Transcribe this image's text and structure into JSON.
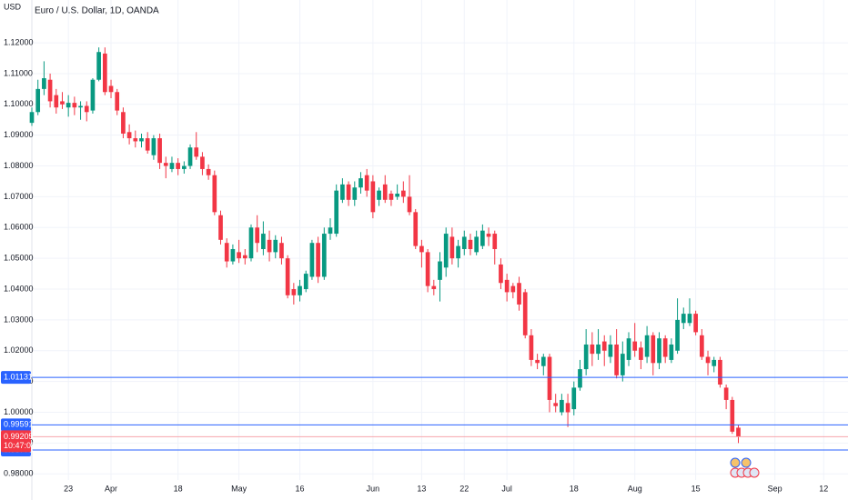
{
  "chart_data": {
    "type": "candlestick",
    "currency": "USD",
    "title": "Euro / U.S. Dollar, 1D, OANDA",
    "up_color": "#089981",
    "down_color": "#f23645",
    "grid": true,
    "xlim": [
      0,
      134
    ],
    "xticks": [
      {
        "value": 6,
        "label": "23"
      },
      {
        "value": 13,
        "label": "Apr"
      },
      {
        "value": 24,
        "label": "18"
      },
      {
        "value": 34,
        "label": "May"
      },
      {
        "value": 44,
        "label": "16"
      },
      {
        "value": 56,
        "label": "Jun"
      },
      {
        "value": 64,
        "label": "13"
      },
      {
        "value": 71,
        "label": "22"
      },
      {
        "value": 78,
        "label": "Jul"
      },
      {
        "value": 89,
        "label": "18"
      },
      {
        "value": 99,
        "label": "Aug"
      },
      {
        "value": 109,
        "label": "15"
      },
      {
        "value": 122,
        "label": "Sep"
      },
      {
        "value": 130,
        "label": "12"
      }
    ],
    "ylim": [
      0.978,
      1.1339
    ],
    "yticks": [
      {
        "value": 0.98,
        "label": "0.98000"
      },
      {
        "value": 0.99,
        "label": "0.99000"
      },
      {
        "value": 1.0,
        "label": "1.00000"
      },
      {
        "value": 1.01,
        "label": "1.01000"
      },
      {
        "value": 1.02,
        "label": "1.02000"
      },
      {
        "value": 1.03,
        "label": "1.03000"
      },
      {
        "value": 1.04,
        "label": "1.04000"
      },
      {
        "value": 1.05,
        "label": "1.05000"
      },
      {
        "value": 1.06,
        "label": "1.06000"
      },
      {
        "value": 1.07,
        "label": "1.07000"
      },
      {
        "value": 1.08,
        "label": "1.08000"
      },
      {
        "value": 1.09,
        "label": "1.09000"
      },
      {
        "value": 1.1,
        "label": "1.10000"
      },
      {
        "value": 1.11,
        "label": "1.11000"
      },
      {
        "value": 1.12,
        "label": "1.12000"
      }
    ],
    "open": [
      1.094,
      1.0975,
      1.105,
      1.108,
      1.103,
      1.101,
      1.099,
      1.1005,
      1.099,
      1.0995,
      1.098,
      1.108,
      1.1165,
      1.106,
      1.104,
      1.0975,
      1.091,
      1.089,
      1.088,
      1.089,
      1.0835,
      1.089,
      1.081,
      1.079,
      1.081,
      1.079,
      1.08,
      1.086,
      1.083,
      1.079,
      1.077,
      1.064,
      1.055,
      1.049,
      1.052,
      1.051,
      1.05,
      1.06,
      1.053,
      1.056,
      1.052,
      1.055,
      1.05,
      1.04,
      1.038,
      1.04,
      1.044,
      1.055,
      1.044,
      1.058,
      1.058,
      1.069,
      1.074,
      1.069,
      1.073,
      1.077,
      1.075,
      1.069,
      1.074,
      1.071,
      1.07,
      1.072,
      1.07,
      1.065,
      1.054,
      1.052,
      1.041,
      1.043,
      1.047,
      1.057,
      1.05,
      1.053,
      1.056,
      1.052,
      1.054,
      1.058,
      1.058,
      1.048,
      1.043,
      1.041,
      1.042,
      1.039,
      1.025,
      1.017,
      1.015,
      1.018,
      1.003,
      1.0,
      1.003,
      1.001,
      1.008,
      1.014,
      1.022,
      1.019,
      1.023,
      1.018,
      1.022,
      1.012,
      1.017,
      1.023,
      1.021,
      1.018,
      1.025,
      1.016,
      1.024,
      1.017,
      1.02,
      1.029,
      1.029,
      1.032,
      1.025,
      1.018,
      1.015,
      1.017,
      1.008,
      1.004,
      0.995
    ],
    "high": [
      1.099,
      1.108,
      1.114,
      1.11,
      1.105,
      1.104,
      1.103,
      1.1025,
      1.101,
      1.101,
      1.1085,
      1.1185,
      1.1185,
      1.108,
      1.105,
      1.099,
      1.0935,
      1.0915,
      1.0905,
      1.091,
      1.09,
      1.0905,
      1.083,
      1.083,
      1.0825,
      1.0815,
      1.087,
      1.091,
      1.0845,
      1.0805,
      1.0785,
      1.0655,
      1.0565,
      1.0545,
      1.056,
      1.053,
      1.061,
      1.064,
      1.062,
      1.059,
      1.0575,
      1.057,
      1.051,
      1.042,
      1.043,
      1.046,
      1.056,
      1.057,
      1.06,
      1.063,
      1.074,
      1.076,
      1.075,
      1.075,
      1.078,
      1.079,
      1.077,
      1.073,
      1.077,
      1.072,
      1.074,
      1.075,
      1.077,
      1.066,
      1.056,
      1.053,
      1.043,
      1.052,
      1.06,
      1.06,
      1.056,
      1.059,
      1.058,
      1.059,
      1.061,
      1.06,
      1.059,
      1.05,
      1.045,
      1.042,
      1.044,
      1.04,
      1.027,
      1.019,
      1.019,
      1.019,
      1.006,
      1.006,
      1.006,
      1.01,
      1.017,
      1.027,
      1.026,
      1.027,
      1.025,
      1.025,
      1.027,
      1.023,
      1.026,
      1.029,
      1.023,
      1.028,
      1.026,
      1.026,
      1.025,
      1.024,
      1.037,
      1.034,
      1.037,
      1.033,
      1.027,
      1.02,
      1.018,
      1.018,
      1.009,
      1.005,
      0.996
    ],
    "low": [
      1.093,
      1.0965,
      1.103,
      1.099,
      1.097,
      1.0985,
      1.096,
      1.0965,
      1.095,
      1.0945,
      1.097,
      1.1075,
      1.103,
      1.102,
      1.0965,
      1.089,
      1.087,
      1.086,
      1.086,
      1.084,
      1.082,
      1.079,
      1.076,
      1.078,
      1.077,
      1.0775,
      1.079,
      1.082,
      1.077,
      1.0755,
      1.064,
      1.0545,
      1.047,
      1.048,
      1.0485,
      1.048,
      1.049,
      1.052,
      1.051,
      1.049,
      1.05,
      1.048,
      1.037,
      1.035,
      1.036,
      1.039,
      1.043,
      1.042,
      1.043,
      1.056,
      1.057,
      1.068,
      1.067,
      1.067,
      1.071,
      1.07,
      1.063,
      1.067,
      1.068,
      1.067,
      1.069,
      1.068,
      1.064,
      1.053,
      1.047,
      1.039,
      1.038,
      1.036,
      1.044,
      1.048,
      1.047,
      1.051,
      1.051,
      1.051,
      1.053,
      1.054,
      1.048,
      1.04,
      1.036,
      1.037,
      1.033,
      1.024,
      1.015,
      1.014,
      1.012,
      1.0,
      1.0,
      0.999,
      0.9952,
      0.999,
      1.007,
      1.012,
      1.015,
      1.017,
      1.015,
      1.016,
      1.011,
      1.01,
      1.015,
      1.018,
      1.014,
      1.016,
      1.012,
      1.014,
      1.016,
      1.016,
      1.019,
      1.027,
      1.028,
      1.025,
      1.017,
      1.012,
      1.013,
      1.008,
      1.001,
      0.993,
      0.99
    ],
    "close": [
      1.0975,
      1.105,
      1.1085,
      1.101,
      1.099,
      1.1,
      1.1005,
      1.099,
      1.0995,
      1.0975,
      1.108,
      1.117,
      1.104,
      1.104,
      1.098,
      1.0905,
      1.089,
      1.088,
      1.089,
      1.085,
      1.089,
      1.081,
      1.08,
      1.081,
      1.079,
      1.08,
      1.086,
      1.083,
      1.079,
      1.077,
      1.065,
      1.056,
      1.049,
      1.053,
      1.05,
      1.05,
      1.06,
      1.055,
      1.058,
      1.052,
      1.056,
      1.05,
      1.038,
      1.038,
      1.041,
      1.045,
      1.055,
      1.044,
      1.058,
      1.06,
      1.072,
      1.074,
      1.069,
      1.073,
      1.076,
      1.072,
      1.065,
      1.072,
      1.069,
      1.069,
      1.071,
      1.07,
      1.065,
      1.054,
      1.052,
      1.041,
      1.04,
      1.049,
      1.058,
      1.05,
      1.054,
      1.057,
      1.053,
      1.057,
      1.059,
      1.057,
      1.053,
      1.042,
      1.039,
      1.039,
      1.035,
      1.025,
      1.017,
      1.016,
      1.018,
      1.004,
      1.002,
      1.004,
      1.0,
      1.008,
      1.014,
      1.022,
      1.019,
      1.022,
      1.02,
      1.022,
      1.012,
      1.019,
      1.024,
      1.02,
      1.017,
      1.025,
      1.016,
      1.024,
      1.018,
      1.022,
      1.03,
      1.032,
      1.032,
      1.026,
      1.018,
      1.016,
      1.017,
      1.009,
      1.004,
      0.9937,
      0.99205
    ],
    "price_lines": [
      1.01131,
      0.99591,
      0.98773
    ],
    "price_line_color": "#2962ff",
    "last_price": 0.99205,
    "countdown": "10:47:09"
  }
}
